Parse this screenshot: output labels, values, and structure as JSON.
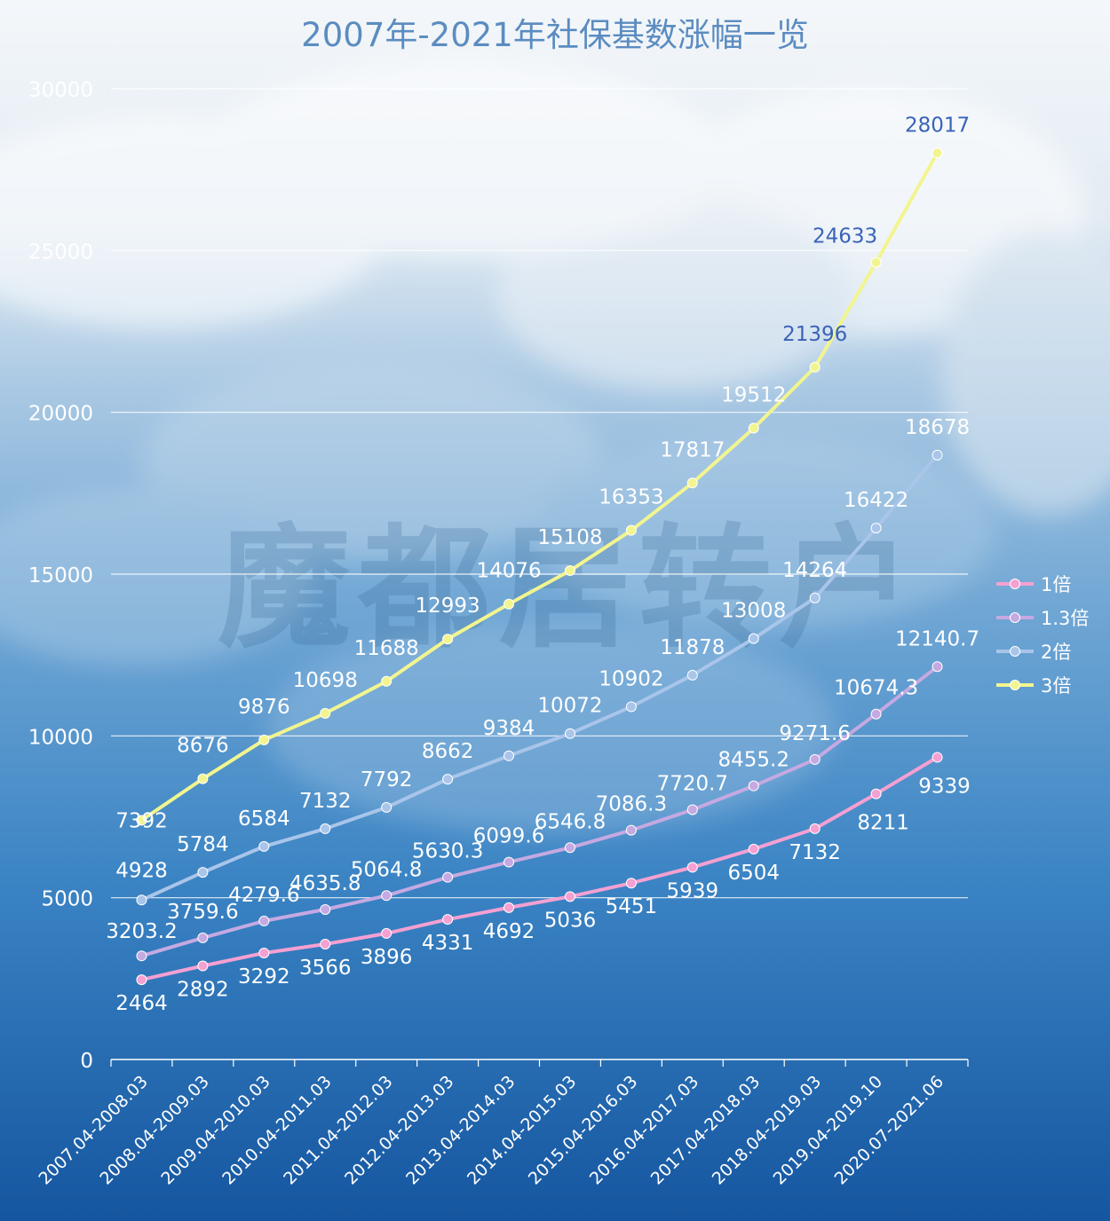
{
  "chart_data": {
    "type": "line",
    "title": "2007年-2021年社保基数涨幅一览",
    "xlabel": "",
    "ylabel": "",
    "ylim": [
      0,
      30000
    ],
    "yticks": [
      0,
      5000,
      10000,
      15000,
      20000,
      25000,
      30000
    ],
    "grid": true,
    "legend_position": "right",
    "watermark": "魔都居转户",
    "categories": [
      "2007.04-2008.03",
      "2008.04-2009.03",
      "2009.04-2010.03",
      "2010.04-2011.03",
      "2011.04-2012.03",
      "2012.04-2013.03",
      "2013.04-2014.03",
      "2014.04-2015.03",
      "2015.04-2016.03",
      "2016.04-2017.03",
      "2017.04-2018.03",
      "2018.04-2019.03",
      "2019.04-2019.10",
      "2020.07-2021.06"
    ],
    "series": [
      {
        "name": "1倍",
        "color": "#f5a0d2",
        "values": [
          2464,
          2892,
          3292,
          3566,
          3896,
          4331,
          4692,
          5036,
          5451,
          5939,
          6504,
          7132,
          8211,
          9339
        ],
        "labels": [
          "2464",
          "2892",
          "3292",
          "3566",
          "3896",
          "4331",
          "4692",
          "5036",
          "5451",
          "5939",
          "6504",
          "7132",
          "8211",
          "9339"
        ]
      },
      {
        "name": "1.3倍",
        "color": "#c5a9e2",
        "values": [
          3203.2,
          3759.6,
          4279.6,
          4635.8,
          5064.8,
          5630.3,
          6099.6,
          6546.8,
          7086.3,
          7720.7,
          8455.2,
          9271.6,
          10674.3,
          12140.7
        ],
        "labels": [
          "3203.2",
          "3759.6",
          "4279.6",
          "4635.8",
          "5064.8",
          "5630.3",
          "6099.6",
          "6546.8",
          "7086.3",
          "7720.7",
          "8455.2",
          "9271.6",
          "10674.3",
          "12140.7"
        ]
      },
      {
        "name": "2倍",
        "color": "#a9c5ea",
        "values": [
          4928,
          5784,
          6584,
          7132,
          7792,
          8662,
          9384,
          10072,
          10902,
          11878,
          13008,
          14264,
          16422,
          18678
        ],
        "labels": [
          "4928",
          "5784",
          "6584",
          "7132",
          "7792",
          "8662",
          "9384",
          "10072",
          "10902",
          "11878",
          "13008",
          "14264",
          "16422",
          "18678"
        ]
      },
      {
        "name": "3倍",
        "color": "#f2f58f",
        "values": [
          7392,
          8676,
          9876,
          10698,
          11688,
          12993,
          14076,
          15108,
          16353,
          17817,
          19512,
          21396,
          24633,
          28017
        ],
        "labels": [
          "7392",
          "8676",
          "9876",
          "10698",
          "11688",
          "12993",
          "14076",
          "15108",
          "16353",
          "17817",
          "19512",
          "21396",
          "24633",
          "28017"
        ]
      }
    ]
  }
}
